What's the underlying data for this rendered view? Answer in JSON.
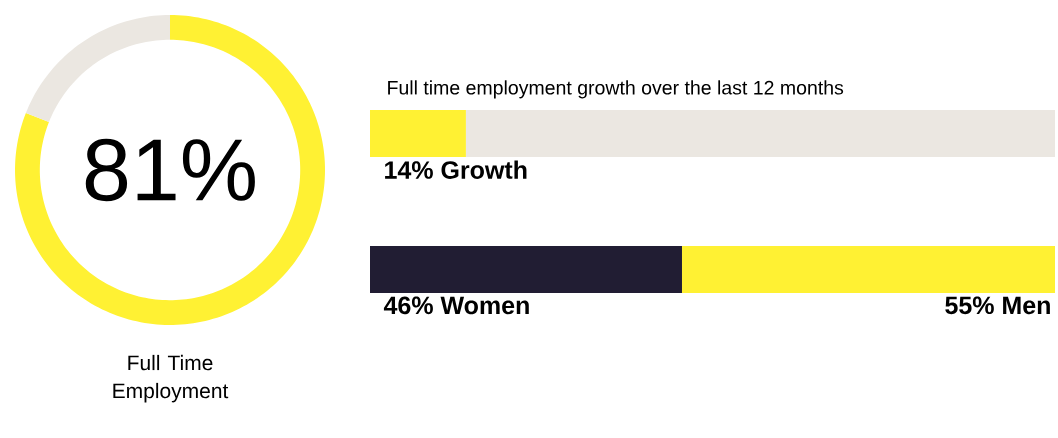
{
  "chart_data": [
    {
      "type": "donut",
      "title": "Full Time Employment",
      "categories": [
        null,
        null
      ],
      "values": [
        81,
        19
      ],
      "colors": [
        "#fff133",
        "#ebe7e1"
      ],
      "value_labels": [
        "81%",
        null
      ]
    },
    {
      "type": "bar",
      "orientation": "horizontal",
      "stacked": true,
      "title": "Full time employment growth over the last 12 months",
      "categories": [
        null
      ],
      "xlim": [
        0,
        100
      ],
      "series": [
        {
          "color": "#fff133",
          "values": [
            14
          ],
          "value_labels": [
            "14% Growth"
          ]
        },
        {
          "color": "#ebe7e1",
          "values": [
            86
          ]
        }
      ]
    },
    {
      "type": "bar",
      "orientation": "horizontal",
      "stacked": true,
      "categories": [
        null
      ],
      "xlim": [
        0,
        101
      ],
      "series": [
        {
          "color": "#211d33",
          "values": [
            46
          ],
          "value_labels": [
            "46% Women"
          ]
        },
        {
          "color": "#fff133",
          "values": [
            55
          ],
          "value_labels": [
            "55% Men"
          ]
        }
      ]
    }
  ]
}
